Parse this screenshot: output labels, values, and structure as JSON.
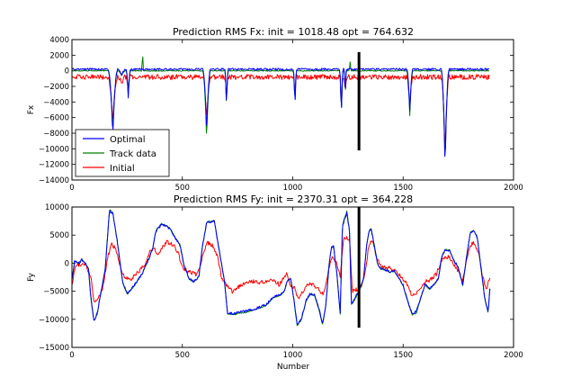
{
  "chart_data": [
    {
      "type": "line",
      "title": "Prediction RMS Fx: init =  1018.48 opt =  764.632",
      "xlabel": "",
      "ylabel": "Fx",
      "xlim": [
        0,
        2000
      ],
      "ylim": [
        -14000,
        4000
      ],
      "xticks": [
        "0",
        "500",
        "1000",
        "1500",
        "2000"
      ],
      "yticks": [
        "4000",
        "2000",
        "0",
        "−2000",
        "−4000",
        "−6000",
        "−8000",
        "−10000",
        "−12000",
        "−14000"
      ],
      "legend": {
        "placement": "lower-left",
        "entries": [
          "Optimal",
          "Track data",
          "Initial"
        ]
      },
      "marker_line": {
        "x": 1300,
        "y_from": -10200,
        "y_to": 2400,
        "color": "#000000"
      },
      "baselines": {
        "track": 0,
        "optimal": 200,
        "initial": -800
      },
      "dips": [
        {
          "x": 185,
          "width": 22,
          "track": -7800,
          "optimal": -8300,
          "initial": -6600
        },
        {
          "x": 225,
          "width": 18,
          "track": -600,
          "optimal": -600,
          "initial": -1500
        },
        {
          "x": 255,
          "width": 10,
          "track": -3200,
          "optimal": -3600,
          "initial": -2600
        },
        {
          "x": 610,
          "width": 18,
          "track": -9000,
          "optimal": -7900,
          "initial": -6400
        },
        {
          "x": 700,
          "width": 8,
          "track": -5000,
          "optimal": -4800,
          "initial": -4100
        },
        {
          "x": 1010,
          "width": 8,
          "track": -4800,
          "optimal": -4900,
          "initial": -4000
        },
        {
          "x": 1220,
          "width": 8,
          "track": -6000,
          "optimal": -6100,
          "initial": -5100
        },
        {
          "x": 1238,
          "width": 6,
          "track": -3500,
          "optimal": -3300,
          "initial": -3000
        },
        {
          "x": 1530,
          "width": 14,
          "track": -5800,
          "optimal": -5200,
          "initial": -4800
        },
        {
          "x": 1690,
          "width": 18,
          "track": -12100,
          "optimal": -12400,
          "initial": -10600
        }
      ],
      "spikes": [
        {
          "x": 320,
          "width": 4,
          "series": "track",
          "value": 2300
        },
        {
          "x": 1260,
          "width": 4,
          "series": "track",
          "value": 1100
        }
      ],
      "series": [
        {
          "name": "Optimal",
          "color": "#0000ff"
        },
        {
          "name": "Track data",
          "color": "#008000"
        },
        {
          "name": "Initial",
          "color": "#ff0000"
        }
      ]
    },
    {
      "type": "line",
      "title": "Prediction RMS Fy: init =  2370.31 opt =  364.228",
      "xlabel": "Number",
      "ylabel": "Fy",
      "xlim": [
        0,
        2000
      ],
      "ylim": [
        -15000,
        10000
      ],
      "xticks": [
        "0",
        "500",
        "1000",
        "1500",
        "2000"
      ],
      "yticks": [
        "10000",
        "5000",
        "0",
        "−5000",
        "−10000",
        "−15000"
      ],
      "marker_line": {
        "x": 1300,
        "y_from": -11500,
        "y_to": 10000,
        "color": "#000000"
      },
      "track_points": [
        [
          0,
          -3000
        ],
        [
          12,
          300
        ],
        [
          30,
          0
        ],
        [
          45,
          600
        ],
        [
          60,
          0
        ],
        [
          75,
          -1000
        ],
        [
          85,
          -6000
        ],
        [
          100,
          -10500
        ],
        [
          115,
          -9000
        ],
        [
          130,
          -5500
        ],
        [
          150,
          -1200
        ],
        [
          170,
          9500
        ],
        [
          185,
          9000
        ],
        [
          205,
          4000
        ],
        [
          230,
          -3500
        ],
        [
          250,
          -5500
        ],
        [
          270,
          -4600
        ],
        [
          290,
          -3600
        ],
        [
          320,
          -1800
        ],
        [
          345,
          500
        ],
        [
          365,
          2500
        ],
        [
          380,
          5800
        ],
        [
          405,
          7000
        ],
        [
          425,
          6700
        ],
        [
          445,
          6200
        ],
        [
          470,
          4400
        ],
        [
          490,
          3200
        ],
        [
          505,
          0
        ],
        [
          530,
          -2800
        ],
        [
          550,
          -3300
        ],
        [
          575,
          -2500
        ],
        [
          590,
          2800
        ],
        [
          610,
          7300
        ],
        [
          645,
          7600
        ],
        [
          660,
          4000
        ],
        [
          690,
          -3000
        ],
        [
          705,
          -9000
        ],
        [
          730,
          -9200
        ],
        [
          760,
          -8900
        ],
        [
          790,
          -8700
        ],
        [
          820,
          -8400
        ],
        [
          850,
          -8000
        ],
        [
          880,
          -7500
        ],
        [
          910,
          -6200
        ],
        [
          940,
          -5800
        ],
        [
          960,
          -5200
        ],
        [
          975,
          -3300
        ],
        [
          990,
          -2700
        ],
        [
          1005,
          -6500
        ],
        [
          1020,
          -11200
        ],
        [
          1040,
          -10000
        ],
        [
          1060,
          -6800
        ],
        [
          1080,
          -5500
        ],
        [
          1100,
          -5800
        ],
        [
          1120,
          -8500
        ],
        [
          1135,
          -11000
        ],
        [
          1150,
          -7500
        ],
        [
          1165,
          0
        ],
        [
          1175,
          2800
        ],
        [
          1185,
          3000
        ],
        [
          1200,
          -2000
        ],
        [
          1215,
          -9000
        ],
        [
          1225,
          6800
        ],
        [
          1235,
          8000
        ],
        [
          1245,
          9200
        ],
        [
          1258,
          5500
        ],
        [
          1265,
          -7500
        ],
        [
          1280,
          -6500
        ],
        [
          1300,
          -5000
        ],
        [
          1320,
          -3000
        ],
        [
          1335,
          3200
        ],
        [
          1345,
          5800
        ],
        [
          1355,
          6300
        ],
        [
          1370,
          3000
        ],
        [
          1385,
          -200
        ],
        [
          1400,
          -1000
        ],
        [
          1420,
          -1200
        ],
        [
          1440,
          -1600
        ],
        [
          1460,
          -1400
        ],
        [
          1480,
          -2600
        ],
        [
          1500,
          -4000
        ],
        [
          1520,
          -6800
        ],
        [
          1540,
          -9200
        ],
        [
          1560,
          -8800
        ],
        [
          1580,
          -6200
        ],
        [
          1600,
          -3800
        ],
        [
          1620,
          -4700
        ],
        [
          1640,
          -3800
        ],
        [
          1660,
          -2800
        ],
        [
          1675,
          1200
        ],
        [
          1690,
          2400
        ],
        [
          1710,
          2300
        ],
        [
          1730,
          500
        ],
        [
          1750,
          -800
        ],
        [
          1770,
          -4000
        ],
        [
          1790,
          2000
        ],
        [
          1805,
          5500
        ],
        [
          1820,
          5800
        ],
        [
          1835,
          4800
        ],
        [
          1850,
          0
        ],
        [
          1870,
          -6500
        ],
        [
          1885,
          -8800
        ],
        [
          1895,
          -3500
        ]
      ],
      "initial_points": [
        [
          0,
          -4000
        ],
        [
          15,
          -400
        ],
        [
          40,
          -200
        ],
        [
          65,
          -300
        ],
        [
          85,
          -2500
        ],
        [
          100,
          -6800
        ],
        [
          120,
          -6000
        ],
        [
          140,
          -4500
        ],
        [
          160,
          900
        ],
        [
          180,
          3500
        ],
        [
          200,
          2300
        ],
        [
          220,
          -1000
        ],
        [
          240,
          -2800
        ],
        [
          270,
          -2700
        ],
        [
          300,
          -1600
        ],
        [
          330,
          -300
        ],
        [
          350,
          1800
        ],
        [
          370,
          2700
        ],
        [
          390,
          1400
        ],
        [
          410,
          2900
        ],
        [
          430,
          3800
        ],
        [
          455,
          3300
        ],
        [
          480,
          2000
        ],
        [
          500,
          -700
        ],
        [
          530,
          -1500
        ],
        [
          560,
          -2000
        ],
        [
          580,
          -500
        ],
        [
          600,
          2500
        ],
        [
          615,
          3600
        ],
        [
          640,
          3000
        ],
        [
          660,
          1000
        ],
        [
          680,
          -3000
        ],
        [
          700,
          -4000
        ],
        [
          730,
          -5200
        ],
        [
          760,
          -4000
        ],
        [
          790,
          -3500
        ],
        [
          820,
          -3300
        ],
        [
          850,
          -3400
        ],
        [
          880,
          -3200
        ],
        [
          910,
          -3100
        ],
        [
          940,
          -3800
        ],
        [
          970,
          -1800
        ],
        [
          990,
          -4000
        ],
        [
          1010,
          -4500
        ],
        [
          1025,
          -6500
        ],
        [
          1040,
          -5500
        ],
        [
          1060,
          -4000
        ],
        [
          1080,
          -3800
        ],
        [
          1100,
          -4000
        ],
        [
          1120,
          -4800
        ],
        [
          1140,
          -5500
        ],
        [
          1160,
          -1500
        ],
        [
          1180,
          1500
        ],
        [
          1200,
          -300
        ],
        [
          1215,
          -2200
        ],
        [
          1230,
          4200
        ],
        [
          1245,
          4600
        ],
        [
          1258,
          4000
        ],
        [
          1270,
          -5000
        ],
        [
          1290,
          -4700
        ],
        [
          1310,
          -4000
        ],
        [
          1330,
          -1200
        ],
        [
          1345,
          3300
        ],
        [
          1360,
          4200
        ],
        [
          1380,
          1000
        ],
        [
          1400,
          -500
        ],
        [
          1430,
          -800
        ],
        [
          1460,
          -1200
        ],
        [
          1490,
          -2300
        ],
        [
          1520,
          -4000
        ],
        [
          1540,
          -5800
        ],
        [
          1560,
          -5600
        ],
        [
          1590,
          -3500
        ],
        [
          1620,
          -3000
        ],
        [
          1650,
          -2000
        ],
        [
          1675,
          500
        ],
        [
          1690,
          1200
        ],
        [
          1710,
          1000
        ],
        [
          1740,
          -800
        ],
        [
          1770,
          -3000
        ],
        [
          1790,
          1200
        ],
        [
          1805,
          3200
        ],
        [
          1820,
          3700
        ],
        [
          1840,
          2200
        ],
        [
          1860,
          -2500
        ],
        [
          1878,
          -4600
        ],
        [
          1895,
          -2100
        ]
      ],
      "series": [
        {
          "name": "Optimal",
          "color": "#0000ff"
        },
        {
          "name": "Track data",
          "color": "#008000"
        },
        {
          "name": "Initial",
          "color": "#ff0000"
        }
      ]
    }
  ]
}
